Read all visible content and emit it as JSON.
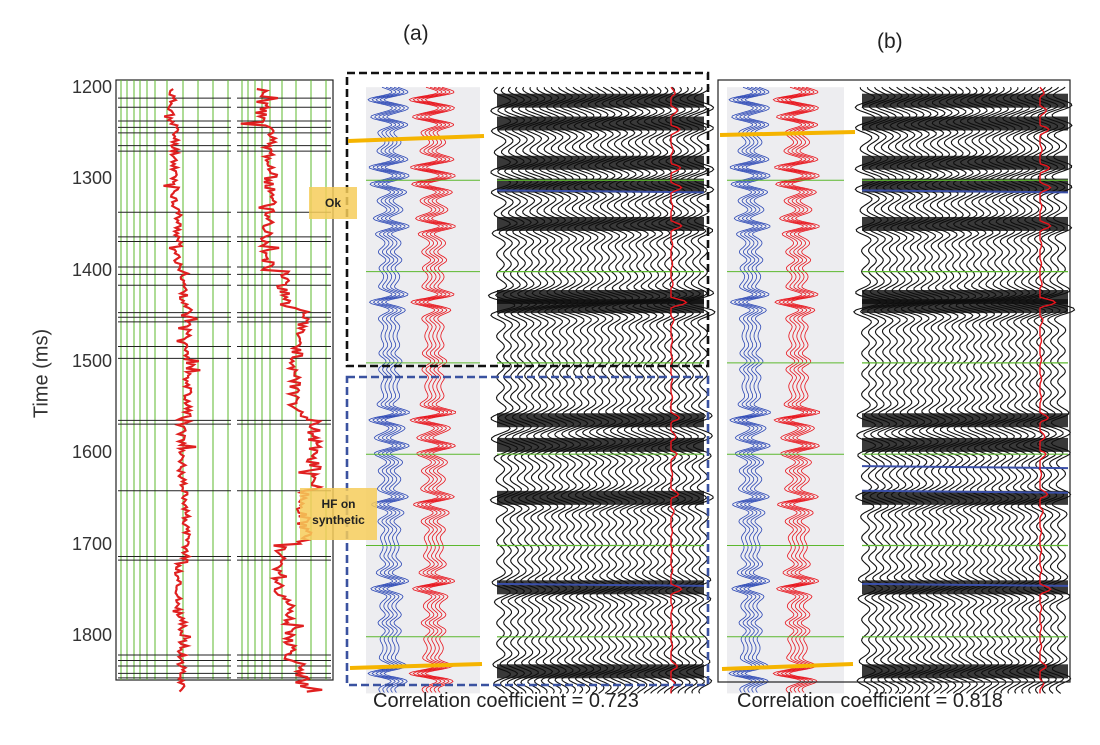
{
  "panels": {
    "a": {
      "label": "(a)",
      "correlation_text": "Correlation coefficient = 0.723"
    },
    "b": {
      "label": "(b)",
      "correlation_text": "Correlation coefficient = 0.818"
    }
  },
  "axis": {
    "y_label": "Time (ms)",
    "ticks": [
      "1200",
      "1300",
      "1400",
      "1500",
      "1600",
      "1700",
      "1800"
    ]
  },
  "annotations": {
    "ok": "Ok",
    "hf": "HF on synthetic"
  },
  "colors": {
    "grid": "#5cb82e",
    "log_curve": "#e02020",
    "synthetic": "#2b47b5",
    "synthetic_red": "#e8141c",
    "horizon_marker": "#f5b400",
    "black_box": "#111111",
    "blue_box": "#3a52a0"
  }
}
